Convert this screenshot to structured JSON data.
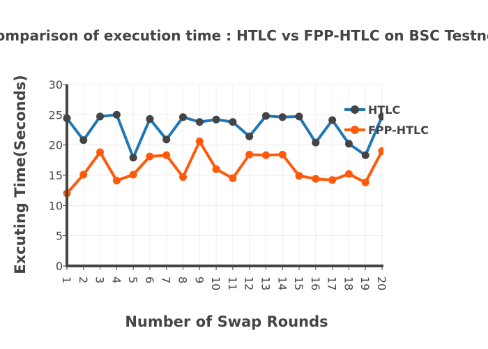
{
  "chart_data": {
    "type": "line",
    "title": "Comparison of execution time : HTLC vs FPP-HTLC on BSC Testnet",
    "xlabel": "Number of Swap Rounds",
    "ylabel": "Excuting Time(Seconds)",
    "x": [
      1,
      2,
      3,
      4,
      5,
      6,
      7,
      8,
      9,
      10,
      11,
      12,
      13,
      14,
      15,
      16,
      17,
      18,
      19,
      20
    ],
    "x_tick_labels": [
      "1",
      "2",
      "3",
      "4",
      "5",
      "6",
      "7",
      "8",
      "9",
      "10",
      "11",
      "12",
      "13",
      "14",
      "15",
      "16",
      "17",
      "18",
      "19",
      "20"
    ],
    "ylim": [
      0,
      30
    ],
    "y_ticks": [
      0,
      5,
      10,
      15,
      20,
      25,
      30
    ],
    "grid": true,
    "legend_position": "top-right",
    "series": [
      {
        "name": "HTLC",
        "color": "#1f77b4",
        "marker_color": "#444444",
        "values": [
          24.4,
          20.8,
          24.7,
          25.0,
          17.9,
          24.3,
          20.9,
          24.6,
          23.8,
          24.2,
          23.8,
          21.4,
          24.8,
          24.6,
          24.7,
          20.4,
          24.1,
          20.2,
          18.3,
          24.7
        ]
      },
      {
        "name": "FPP-HTLC",
        "color": "#ff5a0a",
        "marker_color": "#ff5a0a",
        "values": [
          12.0,
          15.1,
          18.8,
          14.1,
          15.1,
          18.1,
          18.3,
          14.7,
          20.6,
          16.0,
          14.5,
          18.4,
          18.3,
          18.4,
          14.9,
          14.4,
          14.2,
          15.2,
          13.8,
          19.0
        ]
      }
    ]
  }
}
